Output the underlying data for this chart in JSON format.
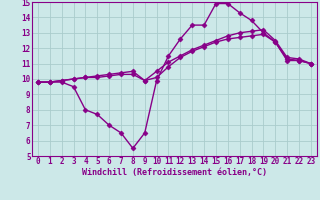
{
  "background_color": "#cce8e8",
  "grid_color": "#aacccc",
  "line_color": "#880088",
  "marker": "D",
  "markersize": 2.5,
  "linewidth": 1.0,
  "xlim": [
    -0.5,
    23.5
  ],
  "ylim": [
    5,
    15
  ],
  "xticks": [
    0,
    1,
    2,
    3,
    4,
    5,
    6,
    7,
    8,
    9,
    10,
    11,
    12,
    13,
    14,
    15,
    16,
    17,
    18,
    19,
    20,
    21,
    22,
    23
  ],
  "yticks": [
    5,
    6,
    7,
    8,
    9,
    10,
    11,
    12,
    13,
    14,
    15
  ],
  "xlabel": "Windchill (Refroidissement éolien,°C)",
  "xlabel_fontsize": 6.0,
  "tick_fontsize": 5.5,
  "series1_x": [
    0,
    1,
    2,
    3,
    4,
    5,
    6,
    7,
    8,
    9,
    10,
    11,
    12,
    13,
    14,
    15,
    16,
    17,
    18,
    19,
    20,
    21,
    22,
    23
  ],
  "series1_y": [
    9.8,
    9.8,
    9.8,
    9.5,
    8.0,
    7.7,
    7.0,
    6.5,
    5.5,
    6.5,
    9.9,
    11.5,
    12.6,
    13.5,
    13.5,
    14.9,
    14.9,
    14.3,
    13.8,
    13.0,
    12.4,
    11.2,
    11.2,
    11.0
  ],
  "series2_x": [
    0,
    1,
    2,
    3,
    4,
    5,
    6,
    7,
    8,
    9,
    10,
    11,
    12,
    13,
    14,
    15,
    16,
    17,
    18,
    19,
    20,
    21,
    22,
    23
  ],
  "series2_y": [
    9.8,
    9.8,
    9.9,
    10.0,
    10.1,
    10.1,
    10.2,
    10.3,
    10.3,
    9.9,
    10.1,
    10.8,
    11.4,
    11.8,
    12.1,
    12.4,
    12.6,
    12.7,
    12.8,
    12.9,
    12.4,
    11.3,
    11.2,
    11.0
  ],
  "series3_x": [
    0,
    1,
    2,
    3,
    4,
    5,
    6,
    7,
    8,
    9,
    10,
    11,
    12,
    13,
    14,
    15,
    16,
    17,
    18,
    19,
    20,
    21,
    22,
    23
  ],
  "series3_y": [
    9.8,
    9.8,
    9.9,
    10.0,
    10.1,
    10.2,
    10.3,
    10.4,
    10.5,
    9.9,
    10.5,
    11.1,
    11.5,
    11.9,
    12.2,
    12.5,
    12.8,
    13.0,
    13.1,
    13.2,
    12.5,
    11.4,
    11.3,
    11.0
  ]
}
